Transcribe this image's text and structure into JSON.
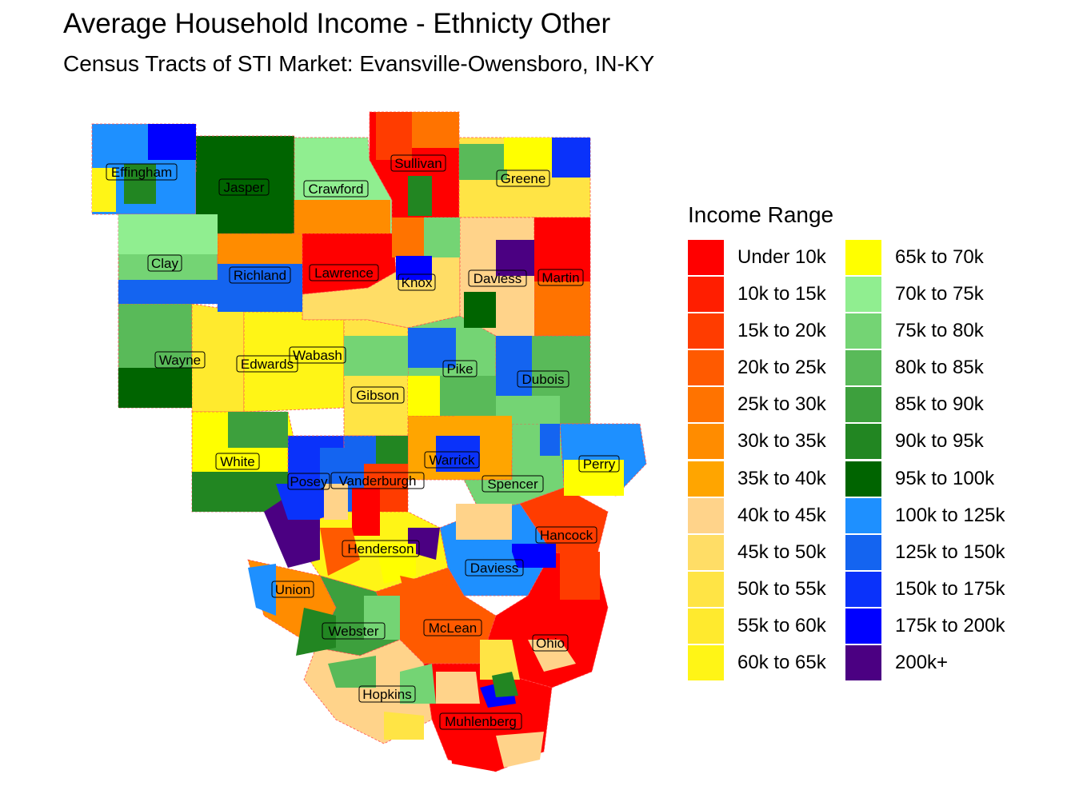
{
  "title": "Average Household Income - Ethnicty Other",
  "subtitle": "Census Tracts of STI Market: Evansville-Owensboro, IN-KY",
  "legend": {
    "title": "Income Range",
    "col1": [
      {
        "label": "Under 10k",
        "color": "#FF0000"
      },
      {
        "label": "10k to 15k",
        "color": "#FF1E00"
      },
      {
        "label": "15k to 20k",
        "color": "#FF3C00"
      },
      {
        "label": "20k to 25k",
        "color": "#FF5A00"
      },
      {
        "label": "25k to 30k",
        "color": "#FF7300"
      },
      {
        "label": "30k to 35k",
        "color": "#FF8C00"
      },
      {
        "label": "35k to 40k",
        "color": "#FFA500"
      },
      {
        "label": "40k to 45k",
        "color": "#FFD38A"
      },
      {
        "label": "45k to 50k",
        "color": "#FFDD66"
      },
      {
        "label": "50k to 55k",
        "color": "#FFE445"
      },
      {
        "label": "55k to 60k",
        "color": "#FFEA2E"
      },
      {
        "label": "60k to 65k",
        "color": "#FFF516"
      }
    ],
    "col2": [
      {
        "label": "65k to 70k",
        "color": "#FFFF00"
      },
      {
        "label": "70k to 75k",
        "color": "#90EE90"
      },
      {
        "label": "75k to 80k",
        "color": "#74D474"
      },
      {
        "label": "80k to 85k",
        "color": "#59BA59"
      },
      {
        "label": "85k to 90k",
        "color": "#3DA03D"
      },
      {
        "label": "90k to 95k",
        "color": "#228622"
      },
      {
        "label": "95k to 100k",
        "color": "#006400"
      },
      {
        "label": "100k to 125k",
        "color": "#1E90FF"
      },
      {
        "label": "125k to 150k",
        "color": "#1464F0"
      },
      {
        "label": "150k to 175k",
        "color": "#0A32FA"
      },
      {
        "label": "175k to 200k",
        "color": "#0000FF"
      },
      {
        "label": "200k+",
        "color": "#4B0082"
      }
    ]
  },
  "counties": [
    {
      "name": "Effingham",
      "fill": "#1E90FF"
    },
    {
      "name": "Jasper",
      "fill": "#006400"
    },
    {
      "name": "Crawford",
      "fill": "#90EE90"
    },
    {
      "name": "Sullivan",
      "fill": "#FF0000"
    },
    {
      "name": "Greene",
      "fill": "#FFE445"
    },
    {
      "name": "Clay",
      "fill": "#74D474"
    },
    {
      "name": "Richland",
      "fill": "#FF8C00"
    },
    {
      "name": "Lawrence",
      "fill": "#FF0000"
    },
    {
      "name": "Knox",
      "fill": "#FFDD66"
    },
    {
      "name": "Daviess",
      "fill": "#FFD38A"
    },
    {
      "name": "Martin",
      "fill": "#FF7300"
    },
    {
      "name": "Wayne",
      "fill": "#59BA59"
    },
    {
      "name": "Edwards",
      "fill": "#FFEA2E"
    },
    {
      "name": "Wabash",
      "fill": "#FFF516"
    },
    {
      "name": "Pike",
      "fill": "#74D474"
    },
    {
      "name": "Dubois",
      "fill": "#59BA59"
    },
    {
      "name": "Gibson",
      "fill": "#FFE445"
    },
    {
      "name": "White",
      "fill": "#FFFF00"
    },
    {
      "name": "Warrick",
      "fill": "#FFA500"
    },
    {
      "name": "Perry",
      "fill": "#1E90FF"
    },
    {
      "name": "Posey",
      "fill": "#0A32FA"
    },
    {
      "name": "Vanderburgh",
      "fill": "#1464F0"
    },
    {
      "name": "Spencer",
      "fill": "#74D474"
    },
    {
      "name": "Hancock",
      "fill": "#FF3C00"
    },
    {
      "name": "Henderson",
      "fill": "#FFF516"
    },
    {
      "name": "Daviess",
      "fill": "#1E90FF"
    },
    {
      "name": "Union",
      "fill": "#FF8C00"
    },
    {
      "name": "Webster",
      "fill": "#3DA03D"
    },
    {
      "name": "McLean",
      "fill": "#FF5A00"
    },
    {
      "name": "Ohio",
      "fill": "#FF0000"
    },
    {
      "name": "Hopkins",
      "fill": "#FFD38A"
    },
    {
      "name": "Muhlenberg",
      "fill": "#FF0000"
    }
  ]
}
